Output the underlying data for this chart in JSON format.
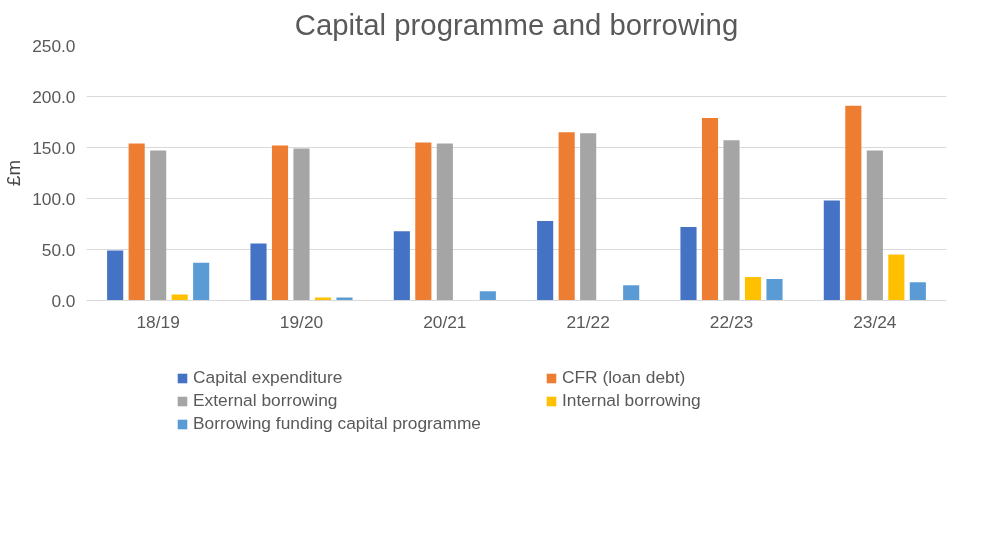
{
  "chart_data": {
    "type": "bar",
    "title": "Capital programme and borrowing",
    "ylabel": "£m",
    "categories": [
      "18/19",
      "19/20",
      "20/21",
      "21/22",
      "22/23",
      "23/24"
    ],
    "series": [
      {
        "name": "Capital expenditure",
        "color": "#4472c4",
        "values": [
          49,
          56,
          68,
          78,
          72,
          98
        ]
      },
      {
        "name": "CFR (loan debt)",
        "color": "#ed7d31",
        "values": [
          154,
          152,
          155,
          165,
          179,
          191
        ]
      },
      {
        "name": "External borrowing",
        "color": "#a5a5a5",
        "values": [
          147,
          149,
          154,
          164,
          157,
          147
        ]
      },
      {
        "name": "Internal borrowing",
        "color": "#ffc000",
        "values": [
          6,
          3,
          0,
          0,
          23,
          45
        ]
      },
      {
        "name": "Borrowing funding capital programme",
        "color": "#5b9bd5",
        "values": [
          37,
          3,
          9,
          15,
          21,
          18
        ]
      }
    ],
    "ylim": [
      0,
      250
    ],
    "yticks": [
      {
        "value": 0,
        "label": "0.0"
      },
      {
        "value": 50,
        "label": "50.0"
      },
      {
        "value": 100,
        "label": "100.0"
      },
      {
        "value": 150,
        "label": "150.0"
      },
      {
        "value": 200,
        "label": "200.0"
      },
      {
        "value": 250,
        "label": "250.0"
      }
    ],
    "grid": "y",
    "legend": "bottom"
  }
}
